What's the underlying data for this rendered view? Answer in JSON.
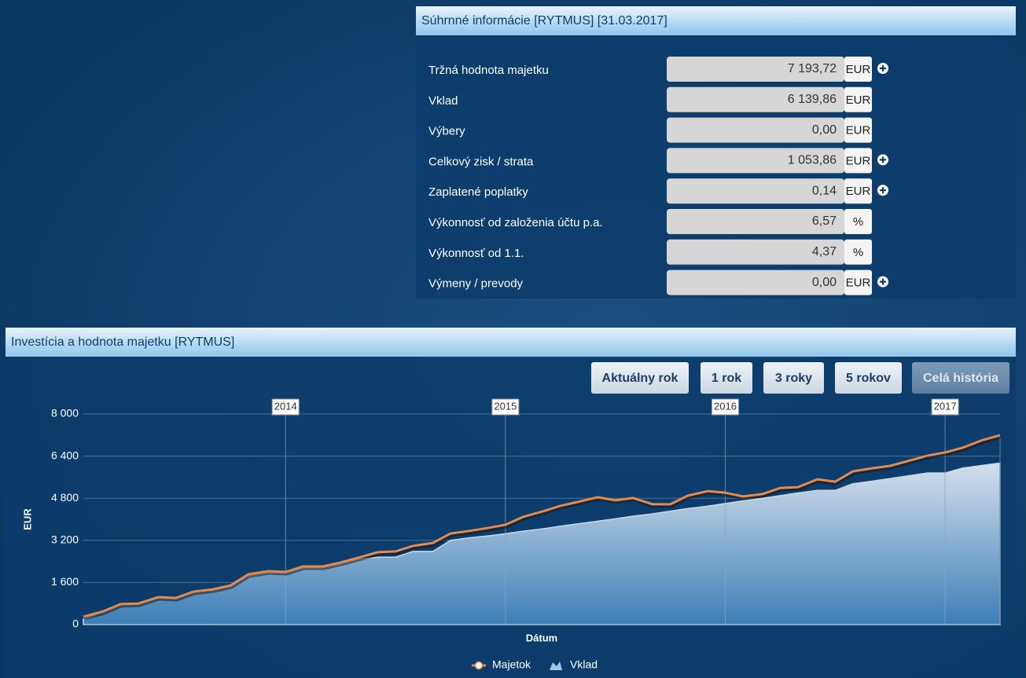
{
  "summary": {
    "title": "Súhrnné informácie [RYTMUS] [31.03.2017]",
    "rows": [
      {
        "label": "Tržná hodnota majetku",
        "value": "7 193,72",
        "unit": "EUR",
        "expand": true
      },
      {
        "label": "Vklad",
        "value": "6 139,86",
        "unit": "EUR",
        "expand": false
      },
      {
        "label": "Výbery",
        "value": "0,00",
        "unit": "EUR",
        "expand": false
      },
      {
        "label": "Celkový zisk / strata",
        "value": "1 053,86",
        "unit": "EUR",
        "expand": true
      },
      {
        "label": "Zaplatené poplatky",
        "value": "0,14",
        "unit": "EUR",
        "expand": true
      },
      {
        "label": "Výkonnosť od založenia účtu p.a.",
        "value": "6,57",
        "unit": "%",
        "expand": false
      },
      {
        "label": "Výkonnosť od 1.1.",
        "value": "4,37",
        "unit": "%",
        "expand": false
      },
      {
        "label": "Výmeny / prevody",
        "value": "0,00",
        "unit": "EUR",
        "expand": true
      }
    ]
  },
  "chart_panel": {
    "title": "Investícia a hodnota majetku [RYTMUS]",
    "buttons": [
      "Aktuálny rok",
      "1 rok",
      "3 roky",
      "5 rokov",
      "Celá história"
    ],
    "active_button": 4
  },
  "chart_data": {
    "type": "line",
    "x_label": "Dátum",
    "y_label": "EUR",
    "x": [
      2013.08,
      2013.17,
      2013.25,
      2013.33,
      2013.42,
      2013.5,
      2013.58,
      2013.67,
      2013.75,
      2013.83,
      2013.92,
      2014,
      2014.08,
      2014.17,
      2014.25,
      2014.33,
      2014.42,
      2014.5,
      2014.58,
      2014.67,
      2014.75,
      2014.83,
      2014.92,
      2015,
      2015.08,
      2015.17,
      2015.25,
      2015.33,
      2015.42,
      2015.5,
      2015.58,
      2015.67,
      2015.75,
      2015.83,
      2015.92,
      2016,
      2016.08,
      2016.17,
      2016.25,
      2016.33,
      2016.42,
      2016.5,
      2016.58,
      2016.67,
      2016.75,
      2016.83,
      2016.92,
      2017,
      2017.08,
      2017.17,
      2017.25
    ],
    "series": [
      {
        "name": "Vklad",
        "kind": "area",
        "color": "#3d7fb8",
        "values": [
          200,
          500,
          780,
          790,
          1030,
          1020,
          1230,
          1310,
          1450,
          1850,
          1960,
          1960,
          2150,
          2160,
          2300,
          2480,
          2560,
          2560,
          2780,
          2780,
          3200,
          3290,
          3370,
          3450,
          3550,
          3640,
          3740,
          3830,
          3930,
          4020,
          4120,
          4210,
          4310,
          4410,
          4500,
          4600,
          4700,
          4800,
          4900,
          5000,
          5100,
          5100,
          5350,
          5450,
          5550,
          5650,
          5760,
          5760,
          5950,
          6050,
          6139.86
        ]
      },
      {
        "name": "Majetok",
        "kind": "line",
        "color": "#e58a4e",
        "values": [
          300,
          500,
          780,
          800,
          1040,
          1010,
          1250,
          1340,
          1490,
          1910,
          2030,
          2000,
          2210,
          2210,
          2360,
          2540,
          2750,
          2780,
          2990,
          3100,
          3460,
          3550,
          3670,
          3790,
          4090,
          4300,
          4510,
          4660,
          4840,
          4720,
          4810,
          4570,
          4570,
          4900,
          5070,
          5010,
          4870,
          4960,
          5190,
          5220,
          5520,
          5430,
          5820,
          5940,
          6030,
          6210,
          6420,
          6540,
          6720,
          7010,
          7193.72
        ]
      }
    ],
    "xlim": [
      2013.08,
      2017.25
    ],
    "xticks": [
      2014,
      2015,
      2016,
      2017
    ],
    "ylim": [
      0,
      8000
    ],
    "yticks": [
      0,
      {
        "value": 1600,
        "label": "1 600"
      },
      {
        "value": 3200,
        "label": "3 200"
      },
      {
        "value": 4800,
        "label": "4 800"
      },
      {
        "value": 6400,
        "label": "6 400"
      },
      {
        "value": 8000,
        "label": "8 000"
      }
    ],
    "grid": true,
    "legend": "bottom"
  }
}
